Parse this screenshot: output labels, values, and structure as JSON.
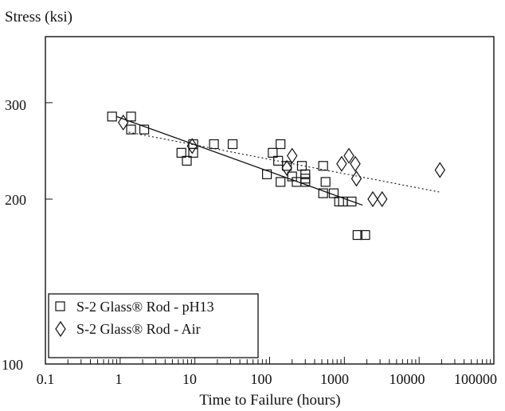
{
  "chart_data": {
    "type": "scatter",
    "ylabel": "Stress (ksi)",
    "xlabel": "Time to Failure (hours)",
    "x_scale": "log",
    "y_scale": "log",
    "xlim": [
      0.1,
      100000
    ],
    "ylim": [
      100,
      420
    ],
    "x_ticks": [
      "0.1",
      "1",
      "10",
      "100",
      "1000",
      "10000",
      "100000"
    ],
    "y_ticks": [
      "100",
      "200",
      "300"
    ],
    "grid": false,
    "legend_position": "bottom-left",
    "series": [
      {
        "name": "S-2 Glass® Rod - pH13",
        "marker": "square",
        "points": [
          [
            0.78,
            283
          ],
          [
            1.4,
            283
          ],
          [
            1.4,
            268
          ],
          [
            2.1,
            268
          ],
          [
            6.6,
            243
          ],
          [
            7.8,
            235
          ],
          [
            9.5,
            243
          ],
          [
            9.5,
            252
          ],
          [
            18,
            252
          ],
          [
            32,
            252
          ],
          [
            92,
            222
          ],
          [
            110,
            243
          ],
          [
            130,
            235
          ],
          [
            140,
            252
          ],
          [
            140,
            215
          ],
          [
            170,
            230
          ],
          [
            200,
            220
          ],
          [
            230,
            215
          ],
          [
            270,
            230
          ],
          [
            300,
            218
          ],
          [
            300,
            222
          ],
          [
            300,
            215
          ],
          [
            520,
            230
          ],
          [
            520,
            205
          ],
          [
            560,
            215
          ],
          [
            720,
            205
          ],
          [
            850,
            198
          ],
          [
            960,
            198
          ],
          [
            1250,
            198
          ],
          [
            1500,
            172
          ],
          [
            1900,
            172
          ]
        ]
      },
      {
        "name": "S-2 Glass® Rod - Air",
        "marker": "diamond",
        "points": [
          [
            1.1,
            276
          ],
          [
            9.2,
            250
          ],
          [
            170,
            228
          ],
          [
            200,
            240
          ],
          [
            920,
            232
          ],
          [
            1150,
            240
          ],
          [
            1400,
            232
          ],
          [
            1450,
            218
          ],
          [
            2400,
            200
          ],
          [
            3200,
            200
          ],
          [
            19000,
            226
          ]
        ]
      }
    ],
    "fit_lines": [
      {
        "series": "S-2 Glass® Rod - pH13",
        "style": "solid",
        "points": [
          [
            0.9,
            283
          ],
          [
            1750,
            195
          ]
        ]
      },
      {
        "series": "S-2 Glass® Rod - Air",
        "style": "dotted",
        "points": [
          [
            1.3,
            265
          ],
          [
            19000,
            206
          ]
        ]
      }
    ]
  }
}
